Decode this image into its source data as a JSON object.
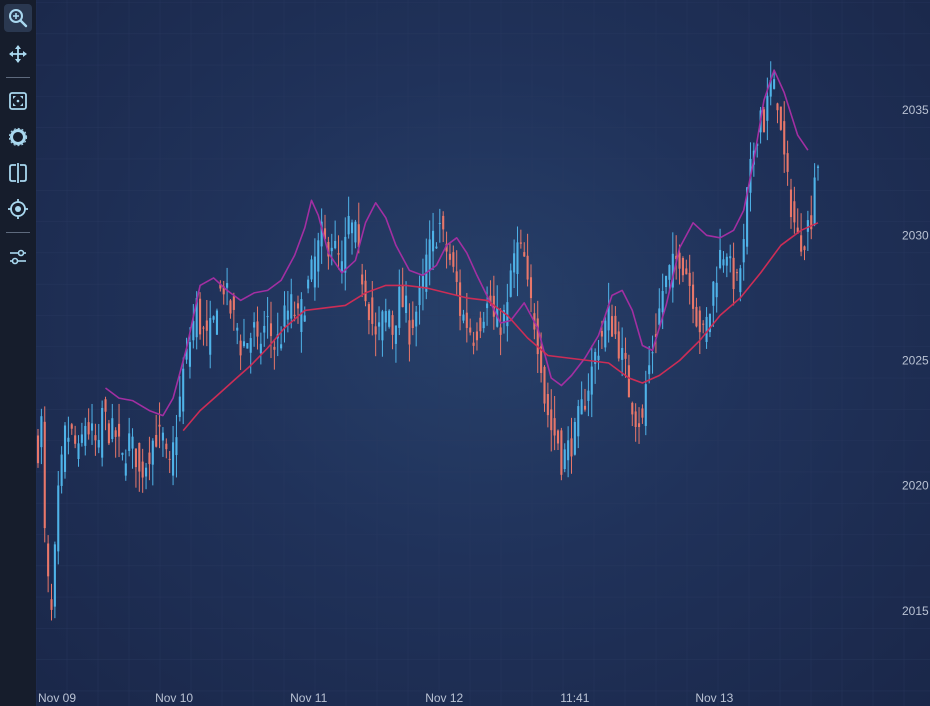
{
  "toolbar": {
    "tools": [
      {
        "icon": "zoom-icon",
        "name": "zoom-tool-button",
        "active": true
      },
      {
        "icon": "pan-icon",
        "name": "pan-tool-button",
        "active": false
      },
      {
        "icon": "zoom-extents-icon",
        "name": "zoom-extents-button",
        "active": false
      },
      {
        "icon": "rollover-icon",
        "name": "rollover-tool-button",
        "active": false
      },
      {
        "icon": "split-view-icon",
        "name": "split-view-button",
        "active": false
      },
      {
        "icon": "cursor-icon",
        "name": "cursor-tool-button",
        "active": false
      },
      {
        "icon": "settings-sliders-icon",
        "name": "settings-button",
        "active": false
      }
    ]
  },
  "colors": {
    "up": "#4fb3e8",
    "down": "#e8776a",
    "ma_fast": "#a22fa2",
    "ma_slow": "#cc2d56",
    "grid": "#2c3d63",
    "tick_text": "#b9c2d3",
    "icon": "#a9d8ef"
  },
  "chart_data": {
    "type": "candlestick",
    "xlabels": [
      "Nov 09",
      "Nov 10",
      "Nov 11",
      "Nov 12",
      "11:41",
      "Nov 13"
    ],
    "ylabels": [
      "2015",
      "2020",
      "2025",
      "2030",
      "2035"
    ],
    "ylim": [
      2011.2,
      2039.4
    ],
    "grid": true,
    "series": [
      {
        "kind": "candles",
        "shape": [
          [
            0,
            2021.5
          ],
          [
            1,
            2022.5
          ],
          [
            2,
            2018.0
          ],
          [
            3,
            2016.0
          ],
          [
            4,
            2014.8
          ],
          [
            6,
            2019.5
          ],
          [
            8,
            2022.0
          ],
          [
            10,
            2022.0
          ],
          [
            12,
            2021.2
          ],
          [
            14,
            2022.5
          ],
          [
            16,
            2022.0
          ],
          [
            18,
            2021.3
          ],
          [
            19,
            2023.0
          ],
          [
            21,
            2022.2
          ],
          [
            23,
            2022.0
          ],
          [
            25,
            2021.0
          ],
          [
            27,
            2021.8
          ],
          [
            29,
            2021.2
          ],
          [
            30,
            2020.4
          ],
          [
            32,
            2021.0
          ],
          [
            34,
            2021.8
          ],
          [
            35,
            2022.0
          ],
          [
            37,
            2021.8
          ],
          [
            38,
            2021.0
          ],
          [
            39,
            2020.6
          ],
          [
            41,
            2022.3
          ],
          [
            43,
            2024.5
          ],
          [
            45,
            2025.8
          ],
          [
            47,
            2027.2
          ],
          [
            48,
            2026.4
          ],
          [
            50,
            2025.8
          ],
          [
            52,
            2026.5
          ],
          [
            53,
            2027.5
          ],
          [
            55,
            2028.0
          ],
          [
            57,
            2027.0
          ],
          [
            59,
            2026.3
          ],
          [
            60,
            2025.6
          ],
          [
            62,
            2025.8
          ],
          [
            64,
            2026.2
          ],
          [
            65,
            2025.4
          ],
          [
            67,
            2026.3
          ],
          [
            68,
            2026.5
          ],
          [
            70,
            2025.6
          ],
          [
            72,
            2026.0
          ],
          [
            73,
            2026.7
          ],
          [
            75,
            2027.2
          ],
          [
            77,
            2026.6
          ],
          [
            79,
            2027.4
          ],
          [
            80,
            2028.0
          ],
          [
            82,
            2029.0
          ],
          [
            84,
            2030.0
          ],
          [
            85,
            2029.6
          ],
          [
            87,
            2029.8
          ],
          [
            89,
            2029.0
          ],
          [
            90,
            2028.6
          ],
          [
            92,
            2030.5
          ],
          [
            94,
            2030.0
          ],
          [
            95,
            2029.0
          ],
          [
            97,
            2027.8
          ],
          [
            99,
            2026.5
          ],
          [
            100,
            2025.8
          ],
          [
            102,
            2026.6
          ],
          [
            104,
            2027.0
          ],
          [
            105,
            2026.2
          ],
          [
            107,
            2027.5
          ],
          [
            109,
            2027.0
          ],
          [
            110,
            2026.2
          ],
          [
            112,
            2027.0
          ],
          [
            114,
            2028.0
          ],
          [
            115,
            2029.0
          ],
          [
            117,
            2029.8
          ],
          [
            119,
            2030.4
          ],
          [
            120,
            2029.8
          ],
          [
            122,
            2029.0
          ],
          [
            124,
            2028.0
          ],
          [
            125,
            2027.0
          ],
          [
            127,
            2026.5
          ],
          [
            129,
            2026.0
          ],
          [
            130,
            2026.3
          ],
          [
            132,
            2027.0
          ],
          [
            134,
            2027.3
          ],
          [
            135,
            2026.6
          ],
          [
            137,
            2026.5
          ],
          [
            139,
            2027.0
          ],
          [
            140,
            2028.5
          ],
          [
            142,
            2029.5
          ],
          [
            144,
            2029.0
          ],
          [
            145,
            2027.8
          ],
          [
            147,
            2026.6
          ],
          [
            149,
            2025.0
          ],
          [
            150,
            2023.5
          ],
          [
            152,
            2022.3
          ],
          [
            154,
            2021.8
          ],
          [
            155,
            2021.0
          ],
          [
            157,
            2021.5
          ],
          [
            159,
            2022.0
          ],
          [
            160,
            2022.6
          ],
          [
            162,
            2023.5
          ],
          [
            164,
            2024.6
          ],
          [
            165,
            2025.2
          ],
          [
            167,
            2026.0
          ],
          [
            169,
            2026.8
          ],
          [
            170,
            2026.4
          ],
          [
            172,
            2025.6
          ],
          [
            174,
            2024.6
          ],
          [
            175,
            2023.8
          ],
          [
            177,
            2022.8
          ],
          [
            179,
            2022.5
          ],
          [
            180,
            2024.0
          ],
          [
            182,
            2025.5
          ],
          [
            184,
            2027.0
          ],
          [
            185,
            2027.8
          ],
          [
            187,
            2028.5
          ],
          [
            189,
            2029.0
          ],
          [
            190,
            2029.2
          ],
          [
            192,
            2028.6
          ],
          [
            194,
            2027.6
          ],
          [
            195,
            2026.8
          ],
          [
            197,
            2026.0
          ],
          [
            199,
            2027.0
          ],
          [
            200,
            2028.0
          ],
          [
            202,
            2029.2
          ],
          [
            204,
            2029.5
          ],
          [
            205,
            2028.6
          ],
          [
            207,
            2028.0
          ],
          [
            209,
            2029.5
          ],
          [
            210,
            2031.5
          ],
          [
            212,
            2033.5
          ],
          [
            214,
            2035.0
          ],
          [
            215,
            2034.5
          ],
          [
            217,
            2036.0
          ],
          [
            219,
            2035.5
          ],
          [
            220,
            2034.0
          ],
          [
            222,
            2032.0
          ],
          [
            224,
            2030.5
          ],
          [
            225,
            2029.8
          ],
          [
            227,
            2030.0
          ],
          [
            229,
            2030.8
          ],
          [
            230,
            2032.5
          ],
          [
            231,
            2033.0
          ]
        ]
      },
      {
        "kind": "ma_fast",
        "shape": [
          [
            20,
            2023.9
          ],
          [
            24,
            2023.5
          ],
          [
            28,
            2023.4
          ],
          [
            33,
            2023.0
          ],
          [
            37,
            2022.8
          ],
          [
            40,
            2023.5
          ],
          [
            44,
            2025.5
          ],
          [
            48,
            2028.0
          ],
          [
            52,
            2028.3
          ],
          [
            56,
            2027.8
          ],
          [
            60,
            2027.4
          ],
          [
            64,
            2027.7
          ],
          [
            68,
            2027.8
          ],
          [
            72,
            2028.2
          ],
          [
            76,
            2029.2
          ],
          [
            79,
            2030.3
          ],
          [
            81,
            2031.4
          ],
          [
            83,
            2030.8
          ],
          [
            86,
            2029.3
          ],
          [
            90,
            2028.5
          ],
          [
            94,
            2029.0
          ],
          [
            97,
            2030.5
          ],
          [
            100,
            2031.3
          ],
          [
            103,
            2030.7
          ],
          [
            106,
            2029.6
          ],
          [
            110,
            2028.6
          ],
          [
            114,
            2028.4
          ],
          [
            118,
            2028.8
          ],
          [
            121,
            2029.6
          ],
          [
            124,
            2029.9
          ],
          [
            127,
            2029.3
          ],
          [
            130,
            2028.4
          ],
          [
            134,
            2027.3
          ],
          [
            137,
            2026.5
          ],
          [
            140,
            2026.6
          ],
          [
            144,
            2027.3
          ],
          [
            148,
            2026.3
          ],
          [
            152,
            2024.3
          ],
          [
            155,
            2024.0
          ],
          [
            158,
            2024.4
          ],
          [
            162,
            2025.1
          ],
          [
            166,
            2026.0
          ],
          [
            170,
            2027.6
          ],
          [
            173,
            2027.8
          ],
          [
            176,
            2027.0
          ],
          [
            179,
            2025.6
          ],
          [
            182,
            2025.4
          ],
          [
            186,
            2027.2
          ],
          [
            190,
            2029.5
          ],
          [
            194,
            2030.5
          ],
          [
            198,
            2030.0
          ],
          [
            202,
            2029.9
          ],
          [
            206,
            2030.2
          ],
          [
            209,
            2031.0
          ],
          [
            212,
            2033.0
          ],
          [
            215,
            2035.4
          ],
          [
            218,
            2036.6
          ],
          [
            221,
            2035.7
          ],
          [
            225,
            2034.0
          ],
          [
            228,
            2033.4
          ]
        ]
      },
      {
        "kind": "ma_slow",
        "shape": [
          [
            43,
            2022.2
          ],
          [
            48,
            2023.0
          ],
          [
            53,
            2023.6
          ],
          [
            58,
            2024.2
          ],
          [
            63,
            2024.8
          ],
          [
            68,
            2025.5
          ],
          [
            73,
            2026.3
          ],
          [
            79,
            2027.0
          ],
          [
            85,
            2027.1
          ],
          [
            91,
            2027.2
          ],
          [
            97,
            2027.7
          ],
          [
            103,
            2028.0
          ],
          [
            109,
            2028.0
          ],
          [
            115,
            2027.9
          ],
          [
            121,
            2027.7
          ],
          [
            127,
            2027.5
          ],
          [
            133,
            2027.4
          ],
          [
            139,
            2026.8
          ],
          [
            145,
            2025.9
          ],
          [
            151,
            2025.2
          ],
          [
            157,
            2025.1
          ],
          [
            163,
            2025.0
          ],
          [
            169,
            2024.9
          ],
          [
            175,
            2024.3
          ],
          [
            179,
            2024.1
          ],
          [
            184,
            2024.4
          ],
          [
            190,
            2025.0
          ],
          [
            196,
            2025.8
          ],
          [
            202,
            2026.8
          ],
          [
            208,
            2027.5
          ],
          [
            214,
            2028.5
          ],
          [
            220,
            2029.6
          ],
          [
            226,
            2030.2
          ],
          [
            231,
            2030.5
          ]
        ]
      }
    ]
  }
}
